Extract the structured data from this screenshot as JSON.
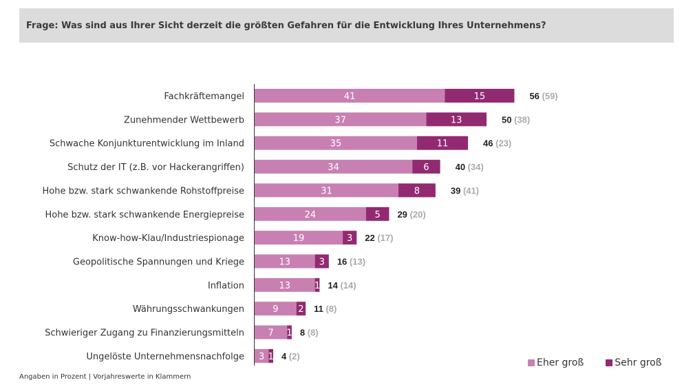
{
  "header": {
    "title": "Frage: Was sind aus Ihrer Sicht derzeit die größten Gefahren für die Entwicklung Ihres Unternehmens?"
  },
  "footnote": "Angaben in Prozent | Vorjahreswerte in Klammern",
  "chart_data": {
    "type": "bar",
    "orientation": "horizontal",
    "stacked": true,
    "categories": [
      "Fachkräftemangel",
      "Zunehmender Wettbewerb",
      "Schwache Konjunkturentwicklung im Inland",
      "Schutz der IT (z.B. vor Hackerangriffen)",
      "Hohe bzw. stark schwankende Rohstoffpreise",
      "Hohe bzw. stark schwankende Energiepreise",
      "Know-how-Klau/Industriespionage",
      "Geopolitische Spannungen und Kriege",
      "Inflation",
      "Währungsschwankungen",
      "Schwieriger Zugang zu Finanzierungsmitteln",
      "Ungelöste Unternehmensnachfolge"
    ],
    "series": [
      {
        "name": "Eher groß",
        "color": "#c880b2",
        "values": [
          41,
          37,
          35,
          34,
          31,
          24,
          19,
          13,
          13,
          9,
          7,
          3
        ]
      },
      {
        "name": "Sehr groß",
        "color": "#922a72",
        "values": [
          15,
          13,
          11,
          6,
          8,
          5,
          3,
          3,
          1,
          2,
          1,
          1
        ]
      }
    ],
    "totals": [
      56,
      50,
      46,
      40,
      39,
      29,
      22,
      16,
      14,
      11,
      8,
      4
    ],
    "previous_year": [
      59,
      38,
      23,
      34,
      41,
      20,
      17,
      13,
      14,
      8,
      8,
      2
    ],
    "legend": "bottom-right",
    "grid": false
  }
}
